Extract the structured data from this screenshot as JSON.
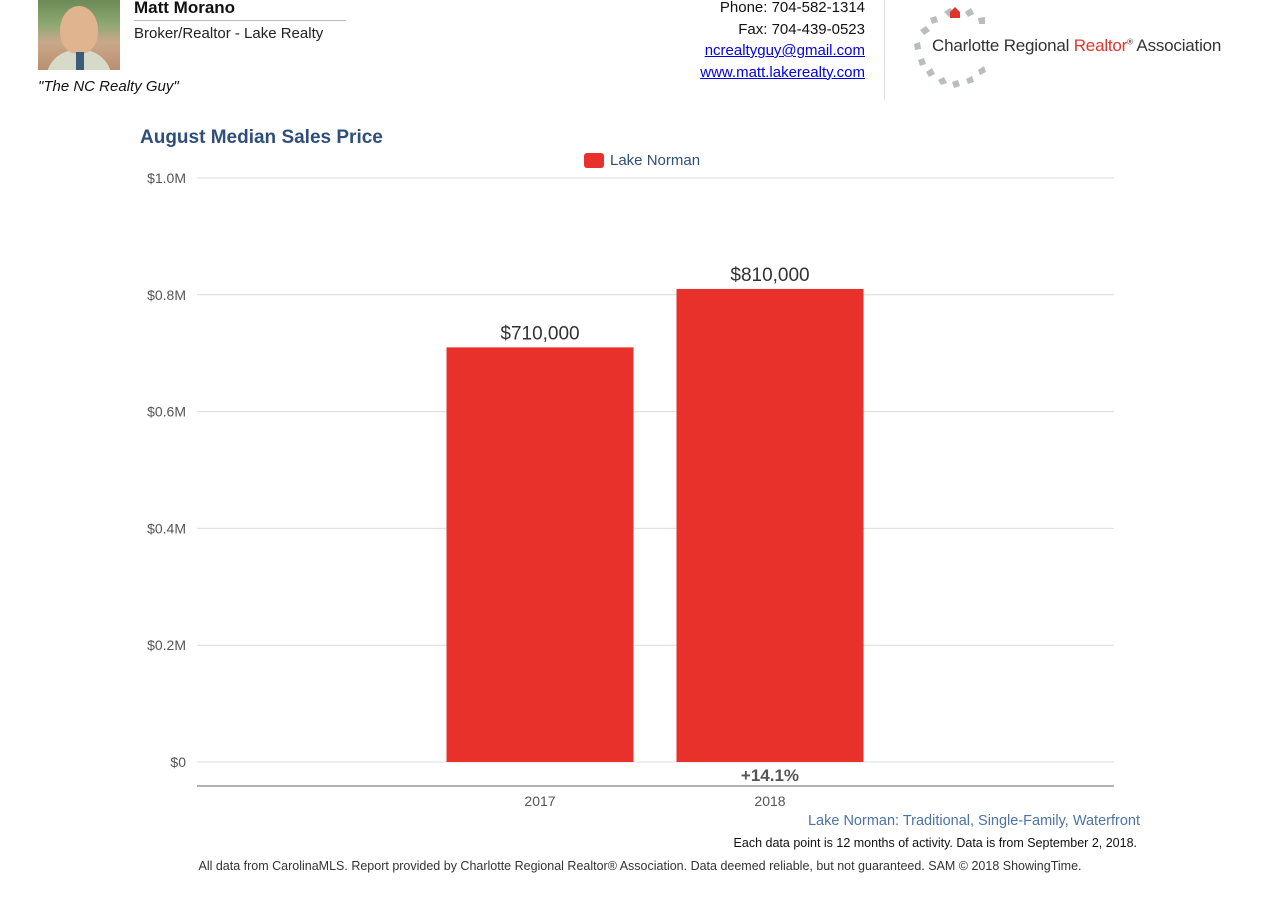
{
  "agent": {
    "name": "Matt Morano",
    "title": "Broker/Realtor - Lake Realty",
    "tagline": "\"The NC Realty Guy\""
  },
  "contact": {
    "phone": "Phone: 704-582-1314",
    "fax": "Fax: 704-439-0523",
    "email": "ncrealtyguy@gmail.com",
    "website": "www.matt.lakerealty.com"
  },
  "association": {
    "text_before": "Charlotte Regional ",
    "text_red": "Realtor",
    "text_mark": "®",
    "text_after": " Association"
  },
  "chart_data": {
    "type": "bar",
    "title": "August Median Sales Price",
    "categories": [
      "2017",
      "2018"
    ],
    "series": [
      {
        "name": "Lake Norman",
        "values": [
          710000,
          810000
        ],
        "color": "#e8312a"
      }
    ],
    "data_labels": [
      "$710,000",
      "$810,000"
    ],
    "change_label": "+14.1%",
    "ylim": [
      0,
      1000000
    ],
    "yticks": [
      0,
      200000,
      400000,
      600000,
      800000,
      1000000
    ],
    "ytick_labels": [
      "$0",
      "$0.2M",
      "$0.4M",
      "$0.6M",
      "$0.8M",
      "$1.0M"
    ],
    "xlabel": "",
    "ylabel": "",
    "grid": true,
    "legend_position": "top-center"
  },
  "subtitle": "Lake Norman: Traditional, Single-Family, Waterfront",
  "note": "Each data point is 12 months of activity. Data is from September 2, 2018.",
  "footer": "All data from CarolinaMLS. Report provided by Charlotte Regional Realtor® Association. Data deemed reliable, but not guaranteed. SAM © 2018 ShowingTime.",
  "colors": {
    "bar": "#e8312a",
    "title": "#2f4f7a",
    "link": "#0000ee",
    "subtitle": "#4d72a8"
  }
}
